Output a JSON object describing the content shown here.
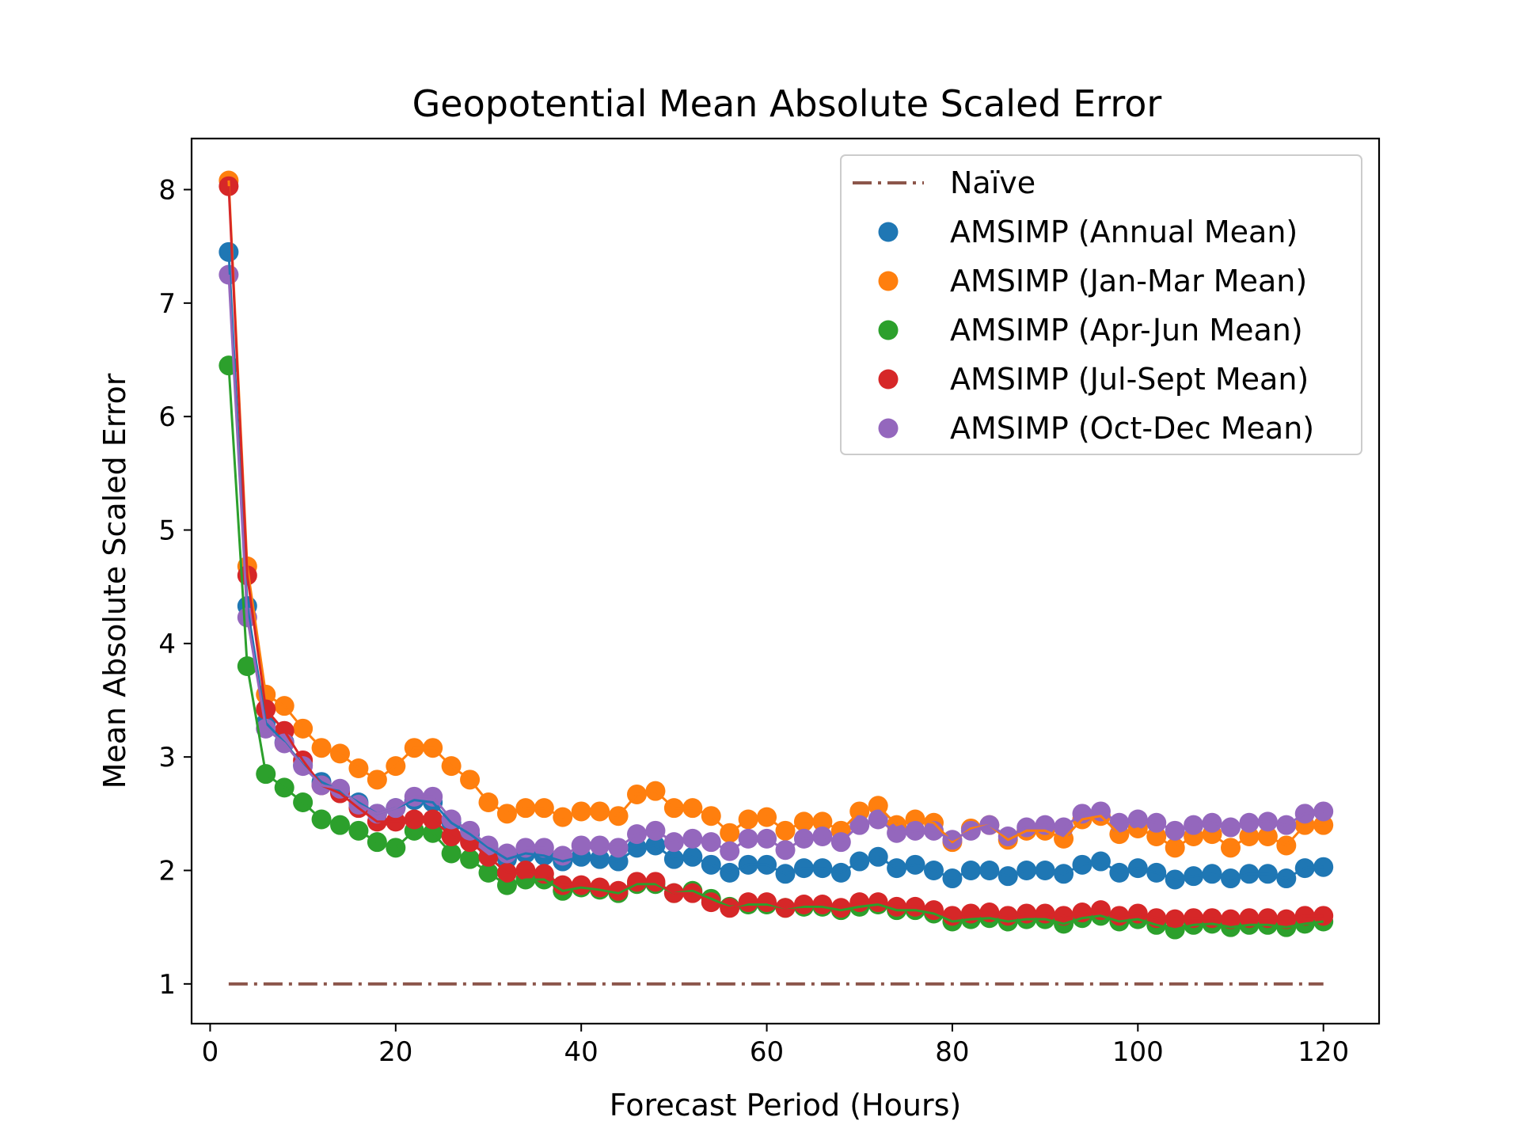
{
  "chart_data": {
    "type": "scatter",
    "title": "Geopotential Mean Absolute Scaled Error",
    "xlabel": "Forecast Period (Hours)",
    "ylabel": "Mean Absolute Scaled Error",
    "xlim": [
      -2,
      126
    ],
    "ylim": [
      0.65,
      8.45
    ],
    "xticks": [
      0,
      20,
      40,
      60,
      80,
      100,
      120
    ],
    "yticks": [
      1,
      2,
      3,
      4,
      5,
      6,
      7,
      8
    ],
    "grid": false,
    "legend_position": "upper right",
    "x": [
      2,
      4,
      6,
      8,
      10,
      12,
      14,
      16,
      18,
      20,
      22,
      24,
      26,
      28,
      30,
      32,
      34,
      36,
      38,
      40,
      42,
      44,
      46,
      48,
      50,
      52,
      54,
      56,
      58,
      60,
      62,
      64,
      66,
      68,
      70,
      72,
      74,
      76,
      78,
      80,
      82,
      84,
      86,
      88,
      90,
      92,
      94,
      96,
      98,
      100,
      102,
      104,
      106,
      108,
      110,
      112,
      114,
      116,
      118,
      120
    ],
    "naive": {
      "name": "Naïve",
      "color": "#8c564b",
      "value": 1.0,
      "x_range": [
        2,
        120
      ]
    },
    "series": [
      {
        "name": "AMSIMP (Annual Mean)",
        "color": "#1f77b4",
        "values": [
          7.45,
          4.33,
          3.3,
          3.13,
          2.93,
          2.78,
          2.7,
          2.6,
          2.5,
          2.55,
          2.62,
          2.6,
          2.42,
          2.32,
          2.2,
          2.1,
          2.15,
          2.13,
          2.08,
          2.12,
          2.1,
          2.08,
          2.2,
          2.22,
          2.1,
          2.12,
          2.05,
          1.98,
          2.05,
          2.05,
          1.97,
          2.02,
          2.02,
          1.98,
          2.08,
          2.12,
          2.02,
          2.05,
          2.0,
          1.93,
          2.0,
          2.0,
          1.95,
          2.0,
          2.0,
          1.97,
          2.05,
          2.08,
          1.98,
          2.02,
          1.98,
          1.92,
          1.95,
          1.97,
          1.93,
          1.97,
          1.97,
          1.93,
          2.02,
          2.03
        ]
      },
      {
        "name": "AMSIMP (Jan-Mar Mean)",
        "color": "#ff7f0e",
        "values": [
          8.08,
          4.68,
          3.55,
          3.45,
          3.25,
          3.08,
          3.03,
          2.9,
          2.8,
          2.92,
          3.08,
          3.08,
          2.92,
          2.8,
          2.6,
          2.5,
          2.55,
          2.55,
          2.47,
          2.52,
          2.52,
          2.48,
          2.67,
          2.7,
          2.55,
          2.55,
          2.48,
          2.33,
          2.45,
          2.47,
          2.35,
          2.43,
          2.43,
          2.35,
          2.52,
          2.57,
          2.4,
          2.45,
          2.42,
          2.25,
          2.37,
          2.4,
          2.27,
          2.35,
          2.35,
          2.28,
          2.45,
          2.48,
          2.32,
          2.37,
          2.3,
          2.2,
          2.3,
          2.32,
          2.2,
          2.3,
          2.3,
          2.22,
          2.4,
          2.4
        ]
      },
      {
        "name": "AMSIMP (Apr-Jun Mean)",
        "color": "#2ca02c",
        "values": [
          6.45,
          3.8,
          2.85,
          2.73,
          2.6,
          2.45,
          2.4,
          2.35,
          2.25,
          2.2,
          2.35,
          2.33,
          2.15,
          2.1,
          1.98,
          1.87,
          1.92,
          1.92,
          1.82,
          1.85,
          1.83,
          1.8,
          1.88,
          1.88,
          1.8,
          1.82,
          1.75,
          1.68,
          1.7,
          1.7,
          1.67,
          1.68,
          1.68,
          1.65,
          1.68,
          1.7,
          1.65,
          1.65,
          1.62,
          1.55,
          1.57,
          1.58,
          1.55,
          1.57,
          1.57,
          1.53,
          1.58,
          1.6,
          1.55,
          1.57,
          1.52,
          1.48,
          1.52,
          1.53,
          1.5,
          1.52,
          1.52,
          1.5,
          1.53,
          1.55
        ]
      },
      {
        "name": "AMSIMP (Jul-Sept Mean)",
        "color": "#d62728",
        "values": [
          8.03,
          4.6,
          3.42,
          3.23,
          2.97,
          2.75,
          2.68,
          2.55,
          2.43,
          2.43,
          2.45,
          2.45,
          2.3,
          2.25,
          2.12,
          1.98,
          2.0,
          1.97,
          1.87,
          1.87,
          1.85,
          1.82,
          1.9,
          1.9,
          1.8,
          1.8,
          1.72,
          1.67,
          1.72,
          1.72,
          1.67,
          1.7,
          1.7,
          1.67,
          1.72,
          1.72,
          1.68,
          1.68,
          1.65,
          1.6,
          1.62,
          1.63,
          1.6,
          1.62,
          1.62,
          1.6,
          1.63,
          1.65,
          1.6,
          1.62,
          1.58,
          1.57,
          1.58,
          1.58,
          1.57,
          1.58,
          1.58,
          1.57,
          1.6,
          1.6
        ]
      },
      {
        "name": "AMSIMP (Oct-Dec Mean)",
        "color": "#9467bd",
        "values": [
          7.25,
          4.23,
          3.25,
          3.12,
          2.92,
          2.75,
          2.72,
          2.58,
          2.5,
          2.55,
          2.65,
          2.65,
          2.45,
          2.35,
          2.22,
          2.15,
          2.2,
          2.2,
          2.13,
          2.22,
          2.22,
          2.2,
          2.32,
          2.35,
          2.25,
          2.28,
          2.25,
          2.17,
          2.28,
          2.28,
          2.18,
          2.28,
          2.3,
          2.25,
          2.4,
          2.45,
          2.33,
          2.35,
          2.35,
          2.27,
          2.35,
          2.4,
          2.3,
          2.38,
          2.4,
          2.38,
          2.5,
          2.52,
          2.42,
          2.45,
          2.42,
          2.35,
          2.4,
          2.42,
          2.38,
          2.42,
          2.43,
          2.4,
          2.5,
          2.52
        ]
      }
    ]
  }
}
